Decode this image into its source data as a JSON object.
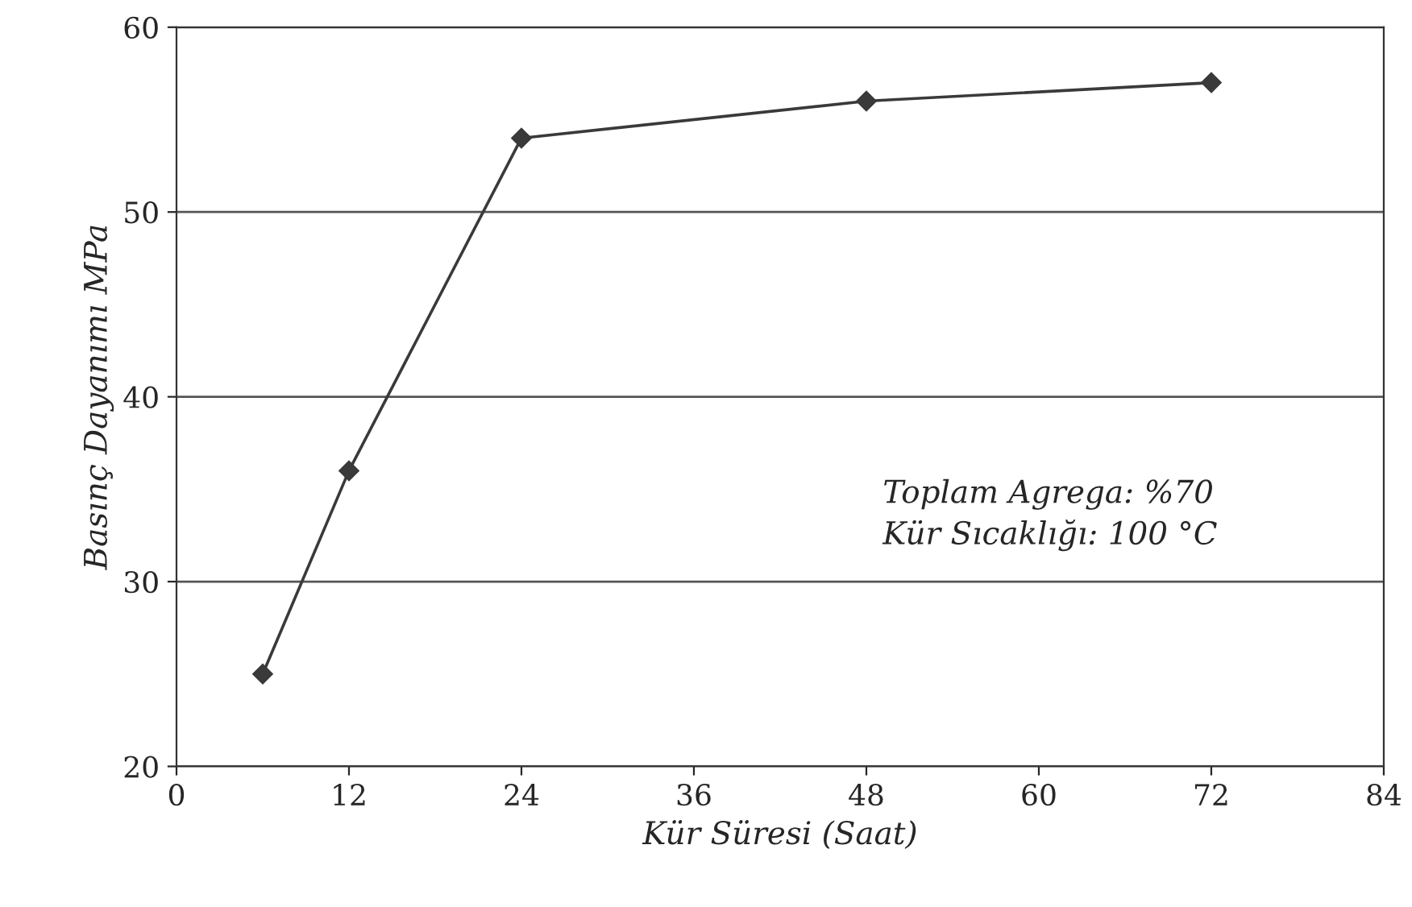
{
  "chart_data": {
    "type": "line",
    "xlabel": "Kür Süresi (Saat)",
    "ylabel": "Basınç Dayanımı MPa",
    "x": [
      6,
      12,
      24,
      48,
      72
    ],
    "series": [
      {
        "color": "#3a3a3a",
        "values": [
          25,
          36,
          54,
          56,
          57
        ]
      }
    ],
    "xlim": [
      0,
      84
    ],
    "xticks": [
      0,
      12,
      24,
      36,
      48,
      60,
      72,
      84
    ],
    "ylim": [
      20,
      60
    ],
    "yticks": [
      20,
      30,
      40,
      50,
      60
    ],
    "grid": "y",
    "marker": "diamond",
    "line_style": "solid",
    "annotations": [
      "Toplam Agrega: %70",
      "Kür Sıcaklığı: 100 °C"
    ]
  }
}
